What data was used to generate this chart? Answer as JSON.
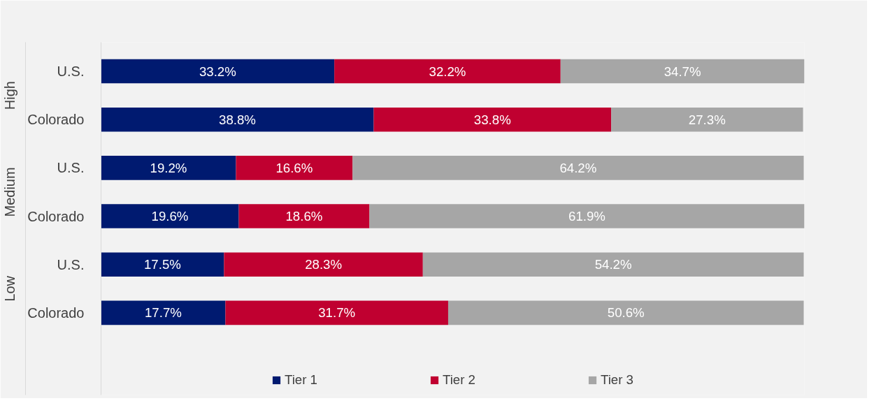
{
  "chart_data": {
    "type": "bar",
    "orientation": "horizontal",
    "stacked": true,
    "legend": "bottom",
    "grid": false,
    "categories": [
      "U.S.",
      "Colorado",
      "U.S.",
      "Colorado",
      "U.S.",
      "Colorado"
    ],
    "annotations": [
      "High",
      "Medium",
      "Low"
    ],
    "series": [
      {
        "name": "Tier 1",
        "color": "#001a70",
        "values": [
          33.2,
          38.8,
          19.2,
          19.6,
          17.5,
          17.7
        ],
        "value_labels": [
          "33.2%",
          "38.8%",
          "19.2%",
          "19.6%",
          "17.5%",
          "17.7%"
        ]
      },
      {
        "name": "Tier 2",
        "color": "#c00030",
        "values": [
          32.2,
          33.8,
          16.6,
          18.6,
          28.3,
          31.7
        ],
        "value_labels": [
          "32.2%",
          "33.8%",
          "16.6%",
          "18.6%",
          "28.3%",
          "31.7%"
        ]
      },
      {
        "name": "Tier 3",
        "color": "#a6a6a6",
        "values": [
          34.7,
          27.3,
          64.2,
          61.9,
          54.2,
          50.6
        ],
        "value_labels": [
          "34.7%",
          "27.3%",
          "64.2%",
          "61.9%",
          "54.2%",
          "50.6%"
        ]
      }
    ]
  }
}
